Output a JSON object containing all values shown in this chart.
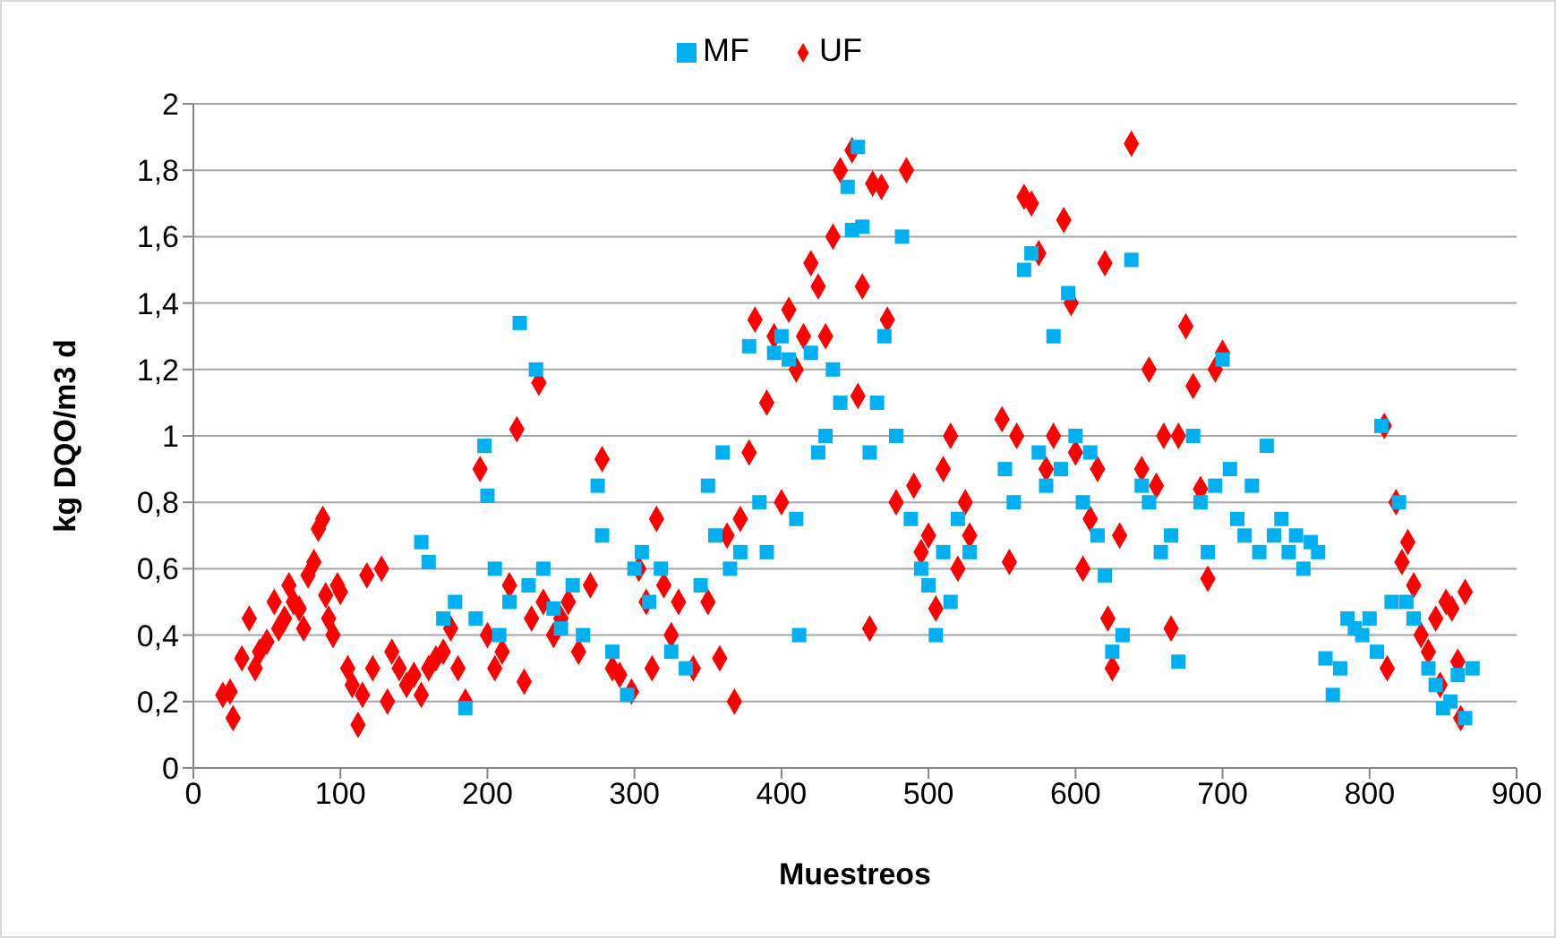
{
  "chart_data": {
    "type": "scatter",
    "xlabel": "Muestreos",
    "ylabel": "kg DQO/m3 d",
    "xlim": [
      0,
      900
    ],
    "xticks": [
      0,
      100,
      200,
      300,
      400,
      500,
      600,
      700,
      800,
      900
    ],
    "ylim": [
      0,
      2
    ],
    "yticks": [
      0,
      {
        "value": 0.2,
        "label": "0,2"
      },
      {
        "value": 0.4,
        "label": "0,4"
      },
      {
        "value": 0.6,
        "label": "0,6"
      },
      {
        "value": 0.8,
        "label": "0,8"
      },
      1,
      {
        "value": 1.2,
        "label": "1,2"
      },
      {
        "value": 1.4,
        "label": "1,4"
      },
      {
        "value": 1.6,
        "label": "1,6"
      },
      {
        "value": 1.8,
        "label": "1,8"
      },
      2
    ],
    "grid": "y",
    "legend": "top",
    "series": [
      {
        "name": "UF",
        "color": "#ff0000",
        "marker": "diamond",
        "x": [
          20,
          25,
          27,
          33,
          38,
          42,
          45,
          50,
          55,
          58,
          62,
          65,
          68,
          72,
          75,
          78,
          82,
          85,
          88,
          90,
          92,
          95,
          98,
          100,
          105,
          108,
          112,
          115,
          118,
          122,
          128,
          132,
          135,
          140,
          145,
          150,
          155,
          160,
          165,
          170,
          175,
          180,
          185,
          195,
          200,
          205,
          210,
          215,
          220,
          225,
          230,
          235,
          238,
          245,
          250,
          255,
          262,
          270,
          278,
          285,
          290,
          298,
          303,
          308,
          312,
          315,
          320,
          325,
          330,
          340,
          350,
          358,
          363,
          368,
          372,
          378,
          382,
          390,
          395,
          400,
          405,
          410,
          415,
          420,
          425,
          430,
          435,
          440,
          448,
          452,
          455,
          460,
          462,
          468,
          472,
          478,
          485,
          490,
          495,
          500,
          505,
          510,
          515,
          520,
          525,
          528,
          550,
          555,
          560,
          565,
          570,
          575,
          580,
          585,
          592,
          597,
          600,
          605,
          610,
          615,
          620,
          622,
          625,
          630,
          638,
          645,
          650,
          655,
          660,
          665,
          670,
          675,
          680,
          685,
          690,
          695,
          700,
          810,
          812,
          818,
          822,
          826,
          830,
          835,
          840,
          845,
          848,
          852,
          856,
          860,
          862,
          865
        ],
        "values": [
          0.22,
          0.23,
          0.15,
          0.33,
          0.45,
          0.3,
          0.35,
          0.38,
          0.5,
          0.42,
          0.45,
          0.55,
          0.5,
          0.48,
          0.42,
          0.58,
          0.62,
          0.72,
          0.75,
          0.52,
          0.45,
          0.4,
          0.55,
          0.53,
          0.3,
          0.25,
          0.13,
          0.22,
          0.58,
          0.3,
          0.6,
          0.2,
          0.35,
          0.3,
          0.25,
          0.28,
          0.22,
          0.3,
          0.33,
          0.35,
          0.42,
          0.3,
          0.2,
          0.9,
          0.4,
          0.3,
          0.35,
          0.55,
          1.02,
          0.26,
          0.45,
          1.16,
          0.5,
          0.4,
          0.45,
          0.5,
          0.35,
          0.55,
          0.93,
          0.3,
          0.28,
          0.23,
          0.6,
          0.5,
          0.3,
          0.75,
          0.55,
          0.4,
          0.5,
          0.3,
          0.5,
          0.33,
          0.7,
          0.2,
          0.75,
          0.95,
          1.35,
          1.1,
          1.3,
          0.8,
          1.38,
          1.2,
          1.3,
          1.52,
          1.45,
          1.3,
          1.6,
          1.8,
          1.86,
          1.12,
          1.45,
          0.42,
          1.76,
          1.75,
          1.35,
          0.8,
          1.8,
          0.85,
          0.65,
          0.7,
          0.48,
          0.9,
          1.0,
          0.6,
          0.8,
          0.7,
          1.05,
          0.62,
          1.0,
          1.72,
          1.7,
          1.55,
          0.9,
          1.0,
          1.65,
          1.4,
          0.95,
          0.6,
          0.75,
          0.9,
          1.52,
          0.45,
          0.3,
          0.7,
          1.88,
          0.9,
          1.2,
          0.85,
          1.0,
          0.42,
          1.0,
          1.33,
          1.15,
          0.84,
          0.57,
          1.2,
          1.25,
          1.03,
          0.3,
          0.8,
          0.62,
          0.68,
          0.55,
          0.4,
          0.35,
          0.45,
          0.25,
          0.5,
          0.48,
          0.32,
          0.15,
          0.53
        ]
      },
      {
        "name": "MF",
        "color": "#00b0f0",
        "marker": "square",
        "x": [
          155,
          160,
          170,
          178,
          185,
          192,
          198,
          200,
          205,
          208,
          215,
          222,
          228,
          233,
          238,
          245,
          250,
          258,
          265,
          275,
          278,
          285,
          295,
          300,
          305,
          310,
          318,
          325,
          335,
          345,
          350,
          355,
          360,
          365,
          372,
          378,
          385,
          390,
          395,
          400,
          405,
          410,
          412,
          420,
          425,
          430,
          435,
          440,
          445,
          448,
          452,
          455,
          460,
          465,
          470,
          478,
          482,
          488,
          495,
          500,
          505,
          510,
          515,
          520,
          528,
          552,
          558,
          565,
          570,
          575,
          580,
          585,
          590,
          595,
          600,
          605,
          610,
          615,
          620,
          625,
          632,
          638,
          645,
          650,
          658,
          665,
          670,
          680,
          685,
          690,
          695,
          700,
          705,
          710,
          715,
          720,
          725,
          730,
          735,
          740,
          745,
          750,
          755,
          760,
          765,
          770,
          775,
          780,
          785,
          790,
          795,
          800,
          805,
          808,
          815,
          820,
          825,
          830,
          840,
          845,
          850,
          855,
          860,
          865,
          870
        ],
        "values": [
          0.68,
          0.62,
          0.45,
          0.5,
          0.18,
          0.45,
          0.97,
          0.82,
          0.6,
          0.4,
          0.5,
          1.34,
          0.55,
          1.2,
          0.6,
          0.48,
          0.42,
          0.55,
          0.4,
          0.85,
          0.7,
          0.35,
          0.22,
          0.6,
          0.65,
          0.5,
          0.6,
          0.35,
          0.3,
          0.55,
          0.85,
          0.7,
          0.95,
          0.6,
          0.65,
          1.27,
          0.8,
          0.65,
          1.25,
          1.3,
          1.23,
          0.75,
          0.4,
          1.25,
          0.95,
          1.0,
          1.2,
          1.1,
          1.75,
          1.62,
          1.87,
          1.63,
          0.95,
          1.1,
          1.3,
          1.0,
          1.6,
          0.75,
          0.6,
          0.55,
          0.4,
          0.65,
          0.5,
          0.75,
          0.65,
          0.9,
          0.8,
          1.5,
          1.55,
          0.95,
          0.85,
          1.3,
          0.9,
          1.43,
          1.0,
          0.8,
          0.95,
          0.7,
          0.58,
          0.35,
          0.4,
          1.53,
          0.85,
          0.8,
          0.65,
          0.7,
          0.32,
          1.0,
          0.8,
          0.65,
          0.85,
          1.23,
          0.9,
          0.75,
          0.7,
          0.85,
          0.65,
          0.97,
          0.7,
          0.75,
          0.65,
          0.7,
          0.6,
          0.68,
          0.65,
          0.33,
          0.22,
          0.3,
          0.45,
          0.42,
          0.4,
          0.45,
          0.35,
          1.03,
          0.5,
          0.8,
          0.5,
          0.45,
          0.3,
          0.25,
          0.18,
          0.2,
          0.28,
          0.15,
          0.3
        ]
      }
    ]
  }
}
